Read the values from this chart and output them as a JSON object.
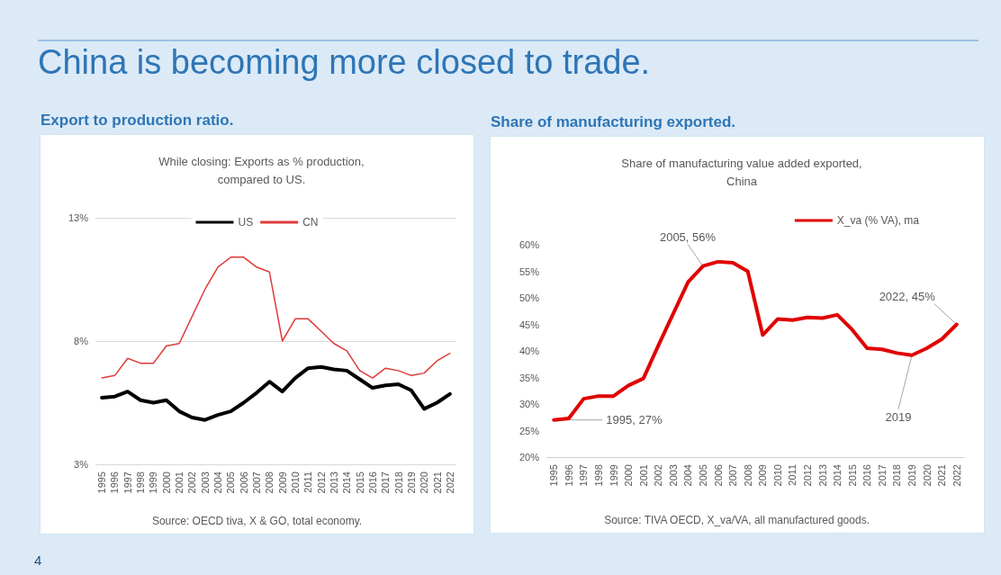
{
  "chart_data": [
    {
      "type": "line",
      "title": "Export to production ratio.",
      "subtitle": "While closing: Exports as % production,\ncompared to US.",
      "categories": [
        "1995",
        "1996",
        "1997",
        "1998",
        "1999",
        "2000",
        "2001",
        "2002",
        "2003",
        "2004",
        "2005",
        "2006",
        "2007",
        "2008",
        "2009",
        "2010",
        "2011",
        "2012",
        "2013",
        "2014",
        "2015",
        "2016",
        "2017",
        "2018",
        "2019",
        "2020",
        "2021",
        "2022"
      ],
      "series": [
        {
          "name": "US",
          "color": "#000000",
          "values": [
            5.7,
            5.75,
            5.95,
            5.6,
            5.5,
            5.6,
            5.15,
            4.9,
            4.8,
            5.0,
            5.15,
            5.5,
            5.9,
            6.35,
            5.95,
            6.5,
            6.9,
            6.95,
            6.85,
            6.8,
            6.45,
            6.1,
            6.2,
            6.25,
            6.0,
            5.25,
            5.5,
            5.85
          ]
        },
        {
          "name": "CN",
          "color": "#e03a3a",
          "values": [
            6.5,
            6.6,
            7.3,
            7.1,
            7.1,
            7.8,
            7.9,
            9.0,
            10.1,
            11.0,
            11.4,
            11.4,
            11.0,
            10.8,
            8.0,
            8.9,
            8.9,
            8.4,
            7.9,
            7.6,
            6.8,
            6.5,
            6.9,
            6.8,
            6.6,
            6.7,
            7.2,
            7.5
          ]
        }
      ],
      "ylim": [
        3,
        13
      ],
      "yticks": [
        {
          "value": 3,
          "label": "3%"
        },
        {
          "value": 8,
          "label": "8%"
        },
        {
          "value": 13,
          "label": "13%"
        }
      ],
      "grid": "y",
      "legend": "top",
      "marker": "none",
      "line_style": "solid",
      "annotations": [
        "China is becoming more closed to trade.",
        "4",
        "Source: OECD tiva, X & GO, total economy."
      ]
    },
    {
      "type": "line",
      "title": "Share of manufacturing exported.",
      "subtitle": "Share of manufacturing value added exported,\nChina",
      "categories": [
        "1995",
        "1996",
        "1997",
        "1998",
        "1999",
        "2000",
        "2001",
        "2002",
        "2003",
        "2004",
        "2005",
        "2006",
        "2007",
        "2008",
        "2009",
        "2010",
        "2011",
        "2012",
        "2013",
        "2014",
        "2015",
        "2016",
        "2017",
        "2018",
        "2019",
        "2020",
        "2021",
        "2022"
      ],
      "series": [
        {
          "name": "X_va (% VA), ma",
          "color": "#e00000",
          "values": [
            27,
            27.3,
            31,
            31.5,
            31.5,
            33.5,
            34.8,
            41,
            47,
            53,
            56,
            56.8,
            56.6,
            55,
            43,
            46,
            45.8,
            46.3,
            46.2,
            46.8,
            44,
            40.5,
            40.3,
            39.6,
            39.2,
            40.5,
            42.2,
            45
          ]
        }
      ],
      "ylim": [
        20,
        60
      ],
      "yticks": [
        {
          "value": 20,
          "label": "20%"
        },
        {
          "value": 25,
          "label": "25%"
        },
        {
          "value": 30,
          "label": "30%"
        },
        {
          "value": 35,
          "label": "35%"
        },
        {
          "value": 40,
          "label": "40%"
        },
        {
          "value": 45,
          "label": "45%"
        },
        {
          "value": 50,
          "label": "50%"
        },
        {
          "value": 55,
          "label": "55%"
        },
        {
          "value": 60,
          "label": "60%"
        }
      ],
      "grid": false,
      "legend": "top right",
      "marker": "none",
      "line_style": "solid",
      "annotations": [
        {
          "text": "2005, 56%",
          "x": "2005",
          "y": 56
        },
        {
          "text": "1995, 27%",
          "x": "1995",
          "y": 27
        },
        {
          "text": "2022, 45%",
          "x": "2022",
          "y": 45
        },
        {
          "text": "2019",
          "x": "2019",
          "y": 39.2
        },
        "Source: TIVA OECD, X_va/VA, all manufactured goods."
      ]
    }
  ]
}
